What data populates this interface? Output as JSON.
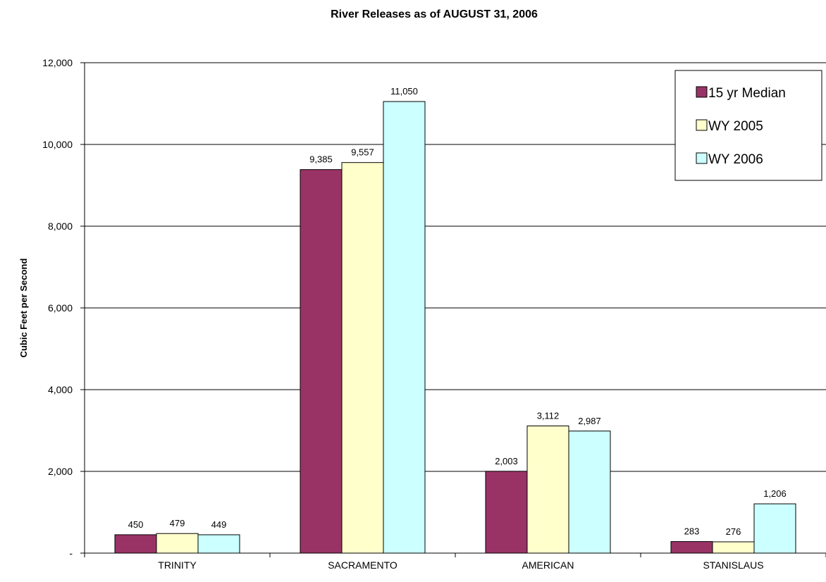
{
  "chart_data": {
    "type": "bar",
    "title": "River Releases as of AUGUST 31, 2006",
    "xlabel": "",
    "ylabel": "Cubic Feet per Second",
    "categories": [
      "TRINITY",
      "SACRAMENTO",
      "AMERICAN",
      "STANISLAUS"
    ],
    "series": [
      {
        "name": "15 yr Median",
        "color": "#993366",
        "values": [
          450,
          9385,
          2003,
          283
        ]
      },
      {
        "name": "WY 2005",
        "color": "#FFFFCC",
        "values": [
          479,
          9557,
          3112,
          276
        ]
      },
      {
        "name": "WY 2006",
        "color": "#CCFFFF",
        "values": [
          449,
          11050,
          2987,
          1206
        ]
      }
    ],
    "data_labels": [
      [
        "450",
        "9,385",
        "2,003",
        "283"
      ],
      [
        "479",
        "9,557",
        "3,112",
        "276"
      ],
      [
        "449",
        "11,050",
        "2,987",
        "1,206"
      ]
    ],
    "ylim": [
      0,
      12000
    ],
    "yticks": [
      0,
      2000,
      4000,
      6000,
      8000,
      10000,
      12000
    ],
    "ytick_labels": [
      "-",
      "2,000",
      "4,000",
      "6,000",
      "8,000",
      "10,000",
      "12,000"
    ],
    "grid": true,
    "legend_position": "top-right"
  }
}
